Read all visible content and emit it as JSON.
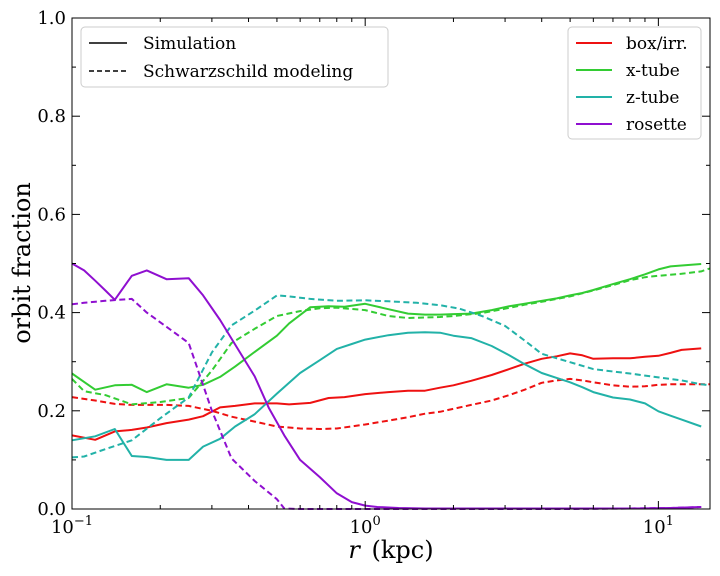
{
  "chart_data": {
    "type": "line",
    "x_scale": "log",
    "xlim": [
      0.1,
      15
    ],
    "ylim": [
      0.0,
      1.0
    ],
    "xlabel": {
      "math": "r",
      "unit": "(kpc)"
    },
    "ylabel": "orbit fraction",
    "xticks": [
      {
        "value": 0.1,
        "base": "10",
        "exp": "−1"
      },
      {
        "value": 1,
        "base": "10",
        "exp": "0"
      },
      {
        "value": 10,
        "base": "10",
        "exp": "1"
      }
    ],
    "yticks": [
      {
        "value": 0.0,
        "label": "0.0"
      },
      {
        "value": 0.2,
        "label": "0.2"
      },
      {
        "value": 0.4,
        "label": "0.4"
      },
      {
        "value": 0.6,
        "label": "0.6"
      },
      {
        "value": 0.8,
        "label": "0.8"
      },
      {
        "value": 1.0,
        "label": "1.0"
      }
    ],
    "style_legend": [
      {
        "label": "Simulation",
        "dash": "solid"
      },
      {
        "label": "Schwarzschild modeling",
        "dash": "dashed"
      }
    ],
    "series_legend": [
      {
        "label": "box/irr.",
        "color": "#ee1111"
      },
      {
        "label": "x-tube",
        "color": "#33cc33"
      },
      {
        "label": "z-tube",
        "color": "#22b2a8"
      },
      {
        "label": "rosette",
        "color": "#8f0fd0"
      }
    ],
    "series": [
      {
        "name": "box/irr.",
        "kind": "Simulation",
        "color": "#ee1111",
        "dash": "solid",
        "x": [
          0.1,
          0.12,
          0.14,
          0.16,
          0.18,
          0.21,
          0.25,
          0.28,
          0.32,
          0.36,
          0.42,
          0.5,
          0.55,
          0.65,
          0.75,
          0.85,
          1.0,
          1.2,
          1.4,
          1.6,
          1.8,
          2.0,
          2.3,
          2.7,
          3.1,
          3.5,
          4.0,
          4.5,
          5.0,
          5.5,
          6.0,
          7.0,
          8.0,
          9.0,
          10.0,
          11.0,
          12.0,
          14.0
        ],
        "y": [
          0.15,
          0.141,
          0.158,
          0.161,
          0.166,
          0.175,
          0.182,
          0.189,
          0.207,
          0.21,
          0.215,
          0.215,
          0.213,
          0.216,
          0.226,
          0.228,
          0.234,
          0.238,
          0.241,
          0.241,
          0.247,
          0.252,
          0.261,
          0.273,
          0.285,
          0.296,
          0.306,
          0.311,
          0.317,
          0.313,
          0.306,
          0.307,
          0.307,
          0.31,
          0.312,
          0.318,
          0.324,
          0.327
        ]
      },
      {
        "name": "box/irr.",
        "kind": "Schwarzschild modeling",
        "color": "#ee1111",
        "dash": "dashed",
        "x": [
          0.1,
          0.12,
          0.14,
          0.16,
          0.18,
          0.21,
          0.25,
          0.3,
          0.35,
          0.42,
          0.5,
          0.6,
          0.7,
          0.8,
          1.0,
          1.2,
          1.4,
          1.6,
          1.8,
          2.0,
          2.3,
          2.7,
          3.1,
          3.5,
          4.0,
          4.5,
          5.0,
          5.5,
          6.0,
          7.0,
          8.0,
          9.0,
          10.0,
          11.0,
          12.0,
          14.0,
          15.0
        ],
        "y": [
          0.228,
          0.221,
          0.214,
          0.212,
          0.212,
          0.212,
          0.21,
          0.2,
          0.188,
          0.178,
          0.168,
          0.164,
          0.163,
          0.164,
          0.172,
          0.18,
          0.187,
          0.194,
          0.198,
          0.204,
          0.212,
          0.221,
          0.232,
          0.243,
          0.257,
          0.262,
          0.265,
          0.262,
          0.258,
          0.252,
          0.249,
          0.25,
          0.253,
          0.254,
          0.254,
          0.254,
          0.254
        ]
      },
      {
        "name": "x-tube",
        "kind": "Simulation",
        "color": "#33cc33",
        "dash": "solid",
        "x": [
          0.1,
          0.12,
          0.14,
          0.16,
          0.18,
          0.21,
          0.25,
          0.28,
          0.32,
          0.36,
          0.42,
          0.5,
          0.55,
          0.65,
          0.75,
          0.85,
          1.0,
          1.2,
          1.4,
          1.6,
          1.8,
          2.0,
          2.3,
          2.7,
          3.1,
          3.5,
          4.0,
          4.5,
          5.0,
          5.5,
          6.0,
          7.0,
          8.0,
          9.0,
          10.0,
          11.0,
          12.0,
          14.0
        ],
        "y": [
          0.276,
          0.243,
          0.252,
          0.253,
          0.238,
          0.254,
          0.247,
          0.253,
          0.269,
          0.29,
          0.32,
          0.353,
          0.378,
          0.411,
          0.413,
          0.412,
          0.418,
          0.407,
          0.398,
          0.396,
          0.396,
          0.397,
          0.398,
          0.405,
          0.413,
          0.418,
          0.424,
          0.429,
          0.435,
          0.44,
          0.446,
          0.458,
          0.468,
          0.478,
          0.488,
          0.494,
          0.496,
          0.499
        ]
      },
      {
        "name": "x-tube",
        "kind": "Schwarzschild modeling",
        "color": "#33cc33",
        "dash": "dashed",
        "x": [
          0.1,
          0.11,
          0.13,
          0.16,
          0.2,
          0.25,
          0.3,
          0.35,
          0.42,
          0.5,
          0.6,
          0.7,
          0.8,
          1.0,
          1.2,
          1.4,
          1.6,
          1.8,
          2.0,
          2.5,
          3.0,
          3.5,
          4.0,
          5.0,
          6.0,
          7.0,
          8.0,
          9.0,
          10.0,
          12.0,
          14.0,
          15.0
        ],
        "y": [
          0.265,
          0.24,
          0.232,
          0.213,
          0.218,
          0.226,
          0.282,
          0.338,
          0.367,
          0.393,
          0.403,
          0.409,
          0.41,
          0.405,
          0.393,
          0.389,
          0.39,
          0.391,
          0.393,
          0.399,
          0.408,
          0.416,
          0.422,
          0.433,
          0.445,
          0.456,
          0.466,
          0.472,
          0.475,
          0.479,
          0.484,
          0.49
        ]
      },
      {
        "name": "z-tube",
        "kind": "Simulation",
        "color": "#22b2a8",
        "dash": "solid",
        "x": [
          0.1,
          0.12,
          0.14,
          0.16,
          0.18,
          0.21,
          0.25,
          0.28,
          0.32,
          0.36,
          0.42,
          0.5,
          0.6,
          0.7,
          0.8,
          0.9,
          1.0,
          1.2,
          1.4,
          1.6,
          1.8,
          2.0,
          2.3,
          2.7,
          3.1,
          3.5,
          4.0,
          4.5,
          5.0,
          5.5,
          6.0,
          7.0,
          8.0,
          9.0,
          10.0,
          11.0,
          12.0,
          14.0
        ],
        "y": [
          0.14,
          0.148,
          0.163,
          0.108,
          0.106,
          0.1,
          0.1,
          0.127,
          0.143,
          0.168,
          0.193,
          0.235,
          0.277,
          0.303,
          0.326,
          0.336,
          0.345,
          0.354,
          0.359,
          0.36,
          0.359,
          0.353,
          0.348,
          0.332,
          0.313,
          0.295,
          0.277,
          0.267,
          0.258,
          0.248,
          0.238,
          0.227,
          0.223,
          0.215,
          0.199,
          0.19,
          0.182,
          0.168
        ]
      },
      {
        "name": "z-tube",
        "kind": "Schwarzschild modeling",
        "color": "#22b2a8",
        "dash": "dashed",
        "x": [
          0.1,
          0.11,
          0.13,
          0.16,
          0.2,
          0.25,
          0.3,
          0.35,
          0.42,
          0.5,
          0.55,
          0.65,
          0.8,
          1.0,
          1.2,
          1.5,
          1.8,
          2.1,
          2.5,
          3.0,
          3.5,
          4.0,
          5.0,
          6.0,
          7.0,
          8.0,
          10.0,
          12.0,
          14.0,
          15.0
        ],
        "y": [
          0.105,
          0.107,
          0.122,
          0.14,
          0.185,
          0.227,
          0.319,
          0.374,
          0.404,
          0.435,
          0.433,
          0.428,
          0.424,
          0.425,
          0.423,
          0.42,
          0.415,
          0.408,
          0.393,
          0.373,
          0.343,
          0.316,
          0.299,
          0.285,
          0.28,
          0.276,
          0.268,
          0.262,
          0.254,
          0.252
        ]
      },
      {
        "name": "rosette",
        "kind": "Simulation",
        "color": "#8f0fd0",
        "dash": "solid",
        "x": [
          0.1,
          0.11,
          0.12,
          0.13,
          0.14,
          0.16,
          0.18,
          0.21,
          0.25,
          0.28,
          0.32,
          0.36,
          0.42,
          0.47,
          0.53,
          0.6,
          0.7,
          0.8,
          0.9,
          1.0,
          1.1,
          1.3,
          1.6,
          2.0,
          3.0,
          5.0,
          8.0,
          11.0,
          14.0
        ],
        "y": [
          0.5,
          0.486,
          0.465,
          0.445,
          0.426,
          0.475,
          0.486,
          0.468,
          0.47,
          0.435,
          0.385,
          0.335,
          0.27,
          0.205,
          0.15,
          0.1,
          0.065,
          0.032,
          0.014,
          0.007,
          0.004,
          0.002,
          0.001,
          0.001,
          0.001,
          0.001,
          0.001,
          0.002,
          0.004
        ]
      },
      {
        "name": "rosette",
        "kind": "Schwarzschild modeling",
        "color": "#8f0fd0",
        "dash": "dashed",
        "x": [
          0.1,
          0.11,
          0.13,
          0.16,
          0.18,
          0.21,
          0.25,
          0.3,
          0.35,
          0.42,
          0.5,
          0.53,
          0.6,
          0.7,
          0.9,
          1.2,
          2.0,
          3.0,
          5.0,
          8.0,
          11.0,
          14.0
        ],
        "y": [
          0.417,
          0.42,
          0.424,
          0.428,
          0.4,
          0.371,
          0.338,
          0.2,
          0.103,
          0.057,
          0.02,
          0.001,
          0.0,
          0.0,
          0.0,
          0.0,
          0.0,
          0.0,
          0.0,
          0.001,
          0.002,
          0.004
        ]
      }
    ]
  }
}
